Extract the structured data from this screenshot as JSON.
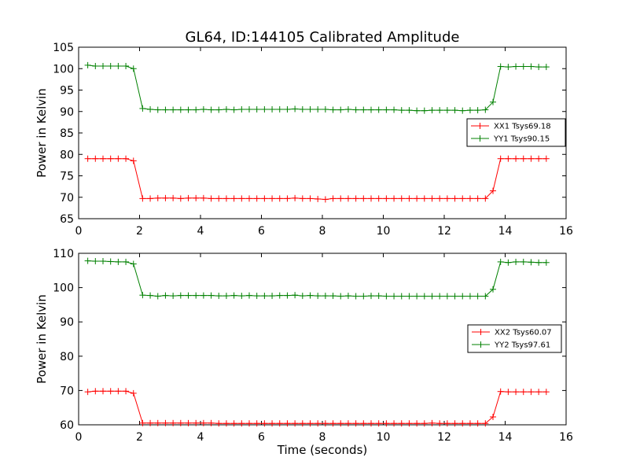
{
  "figure": {
    "title": "GL64, ID:144105 Calibrated Amplitude"
  },
  "colors": {
    "red": "#ff0000",
    "green": "#008000"
  },
  "chart_data": [
    {
      "type": "line",
      "title": "GL64, ID:144105 Calibrated Amplitude",
      "xlabel": "",
      "ylabel": "Power in Kelvin",
      "xlim": [
        0,
        16
      ],
      "ylim": [
        65,
        105
      ],
      "xticks": [
        0,
        2,
        4,
        6,
        8,
        10,
        12,
        14,
        16
      ],
      "yticks": [
        65,
        70,
        75,
        80,
        85,
        90,
        95,
        100,
        105
      ],
      "legend_position": "center-right",
      "grid": false,
      "marker": "+",
      "x": [
        0.3,
        0.55,
        0.8,
        1.05,
        1.3,
        1.55,
        1.8,
        2.1,
        2.35,
        2.6,
        2.85,
        3.1,
        3.35,
        3.6,
        3.85,
        4.1,
        4.35,
        4.6,
        4.85,
        5.1,
        5.35,
        5.6,
        5.85,
        6.1,
        6.35,
        6.6,
        6.85,
        7.1,
        7.35,
        7.6,
        7.85,
        8.1,
        8.35,
        8.6,
        8.85,
        9.1,
        9.35,
        9.6,
        9.85,
        10.1,
        10.35,
        10.6,
        10.85,
        11.1,
        11.35,
        11.6,
        11.85,
        12.1,
        12.35,
        12.6,
        12.85,
        13.1,
        13.35,
        13.6,
        13.85,
        14.1,
        14.35,
        14.6,
        14.85,
        15.1,
        15.35
      ],
      "series": [
        {
          "name": "XX1 Tsys69.18",
          "color": "#ff0000",
          "values": [
            79,
            79,
            79,
            79,
            79,
            79,
            78.5,
            69.7,
            69.7,
            69.8,
            69.8,
            69.8,
            69.7,
            69.8,
            69.8,
            69.8,
            69.7,
            69.7,
            69.7,
            69.7,
            69.7,
            69.7,
            69.7,
            69.7,
            69.7,
            69.7,
            69.7,
            69.8,
            69.7,
            69.7,
            69.6,
            69.5,
            69.7,
            69.7,
            69.7,
            69.7,
            69.7,
            69.7,
            69.7,
            69.7,
            69.7,
            69.7,
            69.7,
            69.7,
            69.7,
            69.7,
            69.7,
            69.7,
            69.7,
            69.7,
            69.7,
            69.7,
            69.7,
            71.5,
            79,
            79,
            79,
            79,
            79,
            79,
            79
          ]
        },
        {
          "name": "YY1 Tsys90.15",
          "color": "#008000",
          "values": [
            100.8,
            100.6,
            100.6,
            100.6,
            100.6,
            100.6,
            100,
            90.7,
            90.5,
            90.4,
            90.4,
            90.4,
            90.4,
            90.4,
            90.4,
            90.5,
            90.4,
            90.4,
            90.5,
            90.4,
            90.5,
            90.5,
            90.5,
            90.5,
            90.5,
            90.5,
            90.5,
            90.6,
            90.5,
            90.5,
            90.5,
            90.5,
            90.4,
            90.4,
            90.5,
            90.4,
            90.4,
            90.4,
            90.4,
            90.4,
            90.4,
            90.3,
            90.3,
            90.2,
            90.2,
            90.3,
            90.3,
            90.3,
            90.3,
            90.2,
            90.3,
            90.3,
            90.4,
            92.2,
            100.5,
            100.4,
            100.5,
            100.5,
            100.5,
            100.4,
            100.4
          ]
        }
      ]
    },
    {
      "type": "line",
      "title": "",
      "xlabel": "Time (seconds)",
      "ylabel": "Power in Kelvin",
      "xlim": [
        0,
        16
      ],
      "ylim": [
        60,
        110
      ],
      "xticks": [
        0,
        2,
        4,
        6,
        8,
        10,
        12,
        14,
        16
      ],
      "yticks": [
        60,
        70,
        80,
        90,
        100,
        110
      ],
      "legend_position": "center-right",
      "grid": false,
      "marker": "+",
      "x": [
        0.3,
        0.55,
        0.8,
        1.05,
        1.3,
        1.55,
        1.8,
        2.1,
        2.35,
        2.6,
        2.85,
        3.1,
        3.35,
        3.6,
        3.85,
        4.1,
        4.35,
        4.6,
        4.85,
        5.1,
        5.35,
        5.6,
        5.85,
        6.1,
        6.35,
        6.6,
        6.85,
        7.1,
        7.35,
        7.6,
        7.85,
        8.1,
        8.35,
        8.6,
        8.85,
        9.1,
        9.35,
        9.6,
        9.85,
        10.1,
        10.35,
        10.6,
        10.85,
        11.1,
        11.35,
        11.6,
        11.85,
        12.1,
        12.35,
        12.6,
        12.85,
        13.1,
        13.35,
        13.6,
        13.85,
        14.1,
        14.35,
        14.6,
        14.85,
        15.1,
        15.35
      ],
      "series": [
        {
          "name": "XX2 Tsys60.07",
          "color": "#ff0000",
          "values": [
            69.6,
            69.8,
            69.8,
            69.8,
            69.8,
            69.8,
            69.2,
            60.5,
            60.5,
            60.5,
            60.5,
            60.5,
            60.5,
            60.5,
            60.5,
            60.5,
            60.5,
            60.4,
            60.4,
            60.4,
            60.4,
            60.4,
            60.4,
            60.4,
            60.4,
            60.4,
            60.4,
            60.4,
            60.4,
            60.4,
            60.4,
            60.4,
            60.4,
            60.4,
            60.4,
            60.4,
            60.4,
            60.4,
            60.4,
            60.4,
            60.4,
            60.4,
            60.4,
            60.4,
            60.4,
            60.5,
            60.4,
            60.4,
            60.4,
            60.4,
            60.4,
            60.4,
            60.4,
            62.3,
            69.7,
            69.6,
            69.6,
            69.6,
            69.6,
            69.6,
            69.6
          ]
        },
        {
          "name": "YY2 Tsys97.61",
          "color": "#008000",
          "values": [
            107.8,
            107.7,
            107.7,
            107.6,
            107.5,
            107.5,
            106.9,
            97.8,
            97.7,
            97.5,
            97.7,
            97.6,
            97.7,
            97.7,
            97.7,
            97.7,
            97.7,
            97.6,
            97.6,
            97.7,
            97.6,
            97.7,
            97.6,
            97.6,
            97.6,
            97.7,
            97.7,
            97.8,
            97.6,
            97.7,
            97.6,
            97.6,
            97.6,
            97.5,
            97.6,
            97.5,
            97.5,
            97.6,
            97.6,
            97.5,
            97.5,
            97.5,
            97.5,
            97.5,
            97.5,
            97.5,
            97.5,
            97.5,
            97.5,
            97.5,
            97.5,
            97.5,
            97.5,
            99.5,
            107.5,
            107.3,
            107.5,
            107.5,
            107.4,
            107.3,
            107.3
          ]
        }
      ]
    }
  ]
}
